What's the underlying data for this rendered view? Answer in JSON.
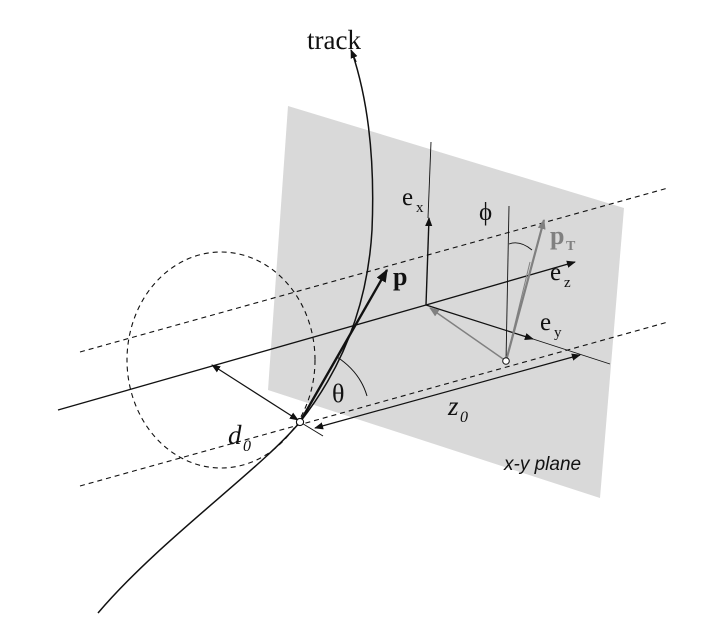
{
  "labels": {
    "track": "track",
    "p": "p",
    "pT": "p",
    "pT_sub": "T",
    "ex": "e",
    "ex_sub": "x",
    "ey": "e",
    "ey_sub": "y",
    "ez": "e",
    "ez_sub": "z",
    "phi": "ϕ",
    "theta": "θ",
    "d0": "d",
    "d0_sub": "0",
    "z0": "z",
    "z0_sub": "0",
    "plane": "x-y plane"
  },
  "colors": {
    "plane_fill": "#d9d9d9",
    "line": "#111111",
    "grey_vector": "#808080",
    "background": "#ffffff"
  }
}
